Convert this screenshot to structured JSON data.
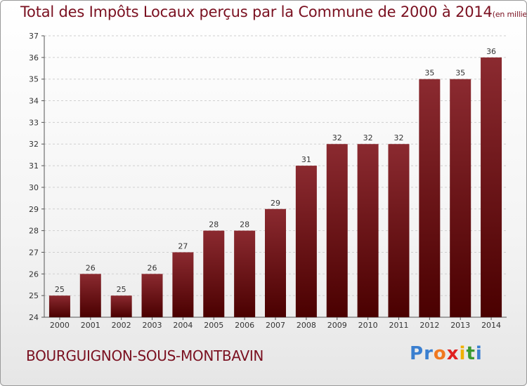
{
  "chart_data": {
    "type": "bar",
    "title": "Total des Impôts Locaux perçus par la Commune de 2000 à 2014",
    "title_unit": "(en milliers d'€)",
    "xlabel": "",
    "ylabel": "",
    "ylim": [
      24,
      37
    ],
    "yticks": [
      24,
      25,
      26,
      27,
      28,
      29,
      30,
      31,
      32,
      33,
      34,
      35,
      36,
      37
    ],
    "categories": [
      "2000",
      "2001",
      "2002",
      "2003",
      "2004",
      "2005",
      "2006",
      "2007",
      "2008",
      "2009",
      "2010",
      "2011",
      "2012",
      "2013",
      "2014"
    ],
    "values": [
      25,
      26,
      25,
      26,
      27,
      28,
      28,
      29,
      31,
      32,
      32,
      32,
      35,
      35,
      36
    ],
    "bar_color_top": "#8b2a30",
    "bar_color_bottom": "#4a0000"
  },
  "commune_name": "BOURGUIGNON-SOUS-MONTBAVIN",
  "logo": {
    "letters": [
      "P",
      "r",
      "o",
      "x",
      "i",
      "t",
      "i"
    ],
    "colors": [
      "#3a7fd0",
      "#3a7fd0",
      "#f07820",
      "#e02020",
      "#f0b000",
      "#3a9a30",
      "#3a7fd0"
    ]
  }
}
